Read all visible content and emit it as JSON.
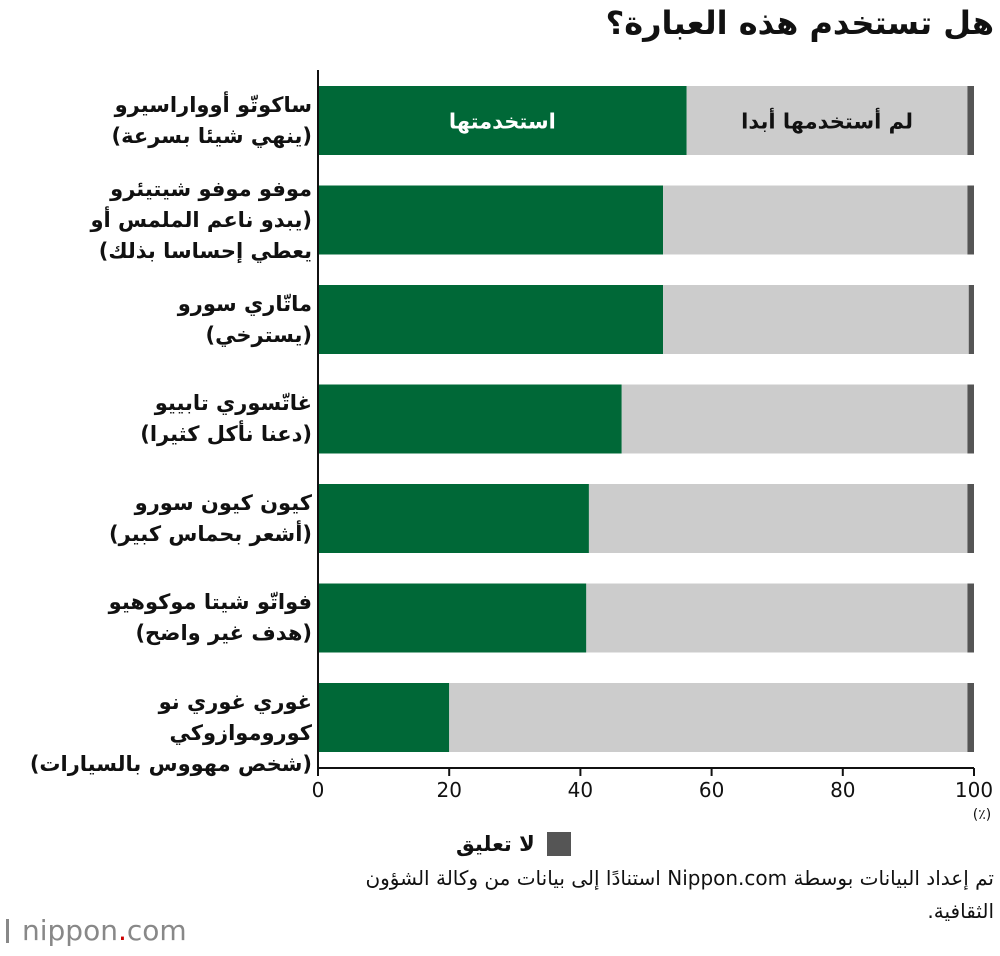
{
  "chart_data": {
    "type": "bar",
    "orientation": "horizontal",
    "stacked": true,
    "title": "هل تستخدم هذه العبارة؟",
    "categories": [
      [
        "ساكوتّو أوواراسيرو",
        "(ينهي شيئا بسرعة)"
      ],
      [
        "موفو موفو شيتيئرو",
        "(يبدو ناعم الملمس أو",
        "يعطي إحساسا بذلك)"
      ],
      [
        "ماتّاري سورو",
        "(يسترخي)"
      ],
      [
        "غاتّسوري تابييو",
        "(دعنا نأكل كثيرا)"
      ],
      [
        "كيون كيون سورو",
        "(أشعر بحماس كبير)"
      ],
      [
        "فواتّو شيتا موكوهيو",
        "(هدف غير واضح)"
      ],
      [
        "غوري غوري نو كوروموازوكي",
        "(شخص مهووس بالسيارات)"
      ]
    ],
    "series": [
      {
        "name": "استخدمتها",
        "color": "#006837",
        "values": [
          56.2,
          52.6,
          52.6,
          46.3,
          41.3,
          40.9,
          20.0
        ]
      },
      {
        "name": "لم أستخدمها أبدا",
        "color": "#cccccc",
        "values": [
          42.8,
          46.4,
          46.6,
          52.7,
          57.7,
          58.1,
          79.0
        ]
      },
      {
        "name": "لا تعليق",
        "color": "#555555",
        "values": [
          1.0,
          1.0,
          0.8,
          1.0,
          1.0,
          1.0,
          1.0
        ]
      }
    ],
    "inline_series_labels": [
      "استخدمتها",
      "لم أستخدمها أبدا"
    ],
    "xlim": [
      0,
      100
    ],
    "xticks": [
      "0",
      "20",
      "40",
      "60",
      "80",
      "100"
    ],
    "xunit": "(٪)",
    "legend": "bottom",
    "legend_entry": "لا تعليق"
  },
  "footer": {
    "source": "تم إعداد البيانات بوسطة Nippon.com استنادًا إلى بيانات من وكالة الشؤون الثقافية.",
    "logo_name": "nippon",
    "logo_dot": ".",
    "logo_tld": "com"
  }
}
